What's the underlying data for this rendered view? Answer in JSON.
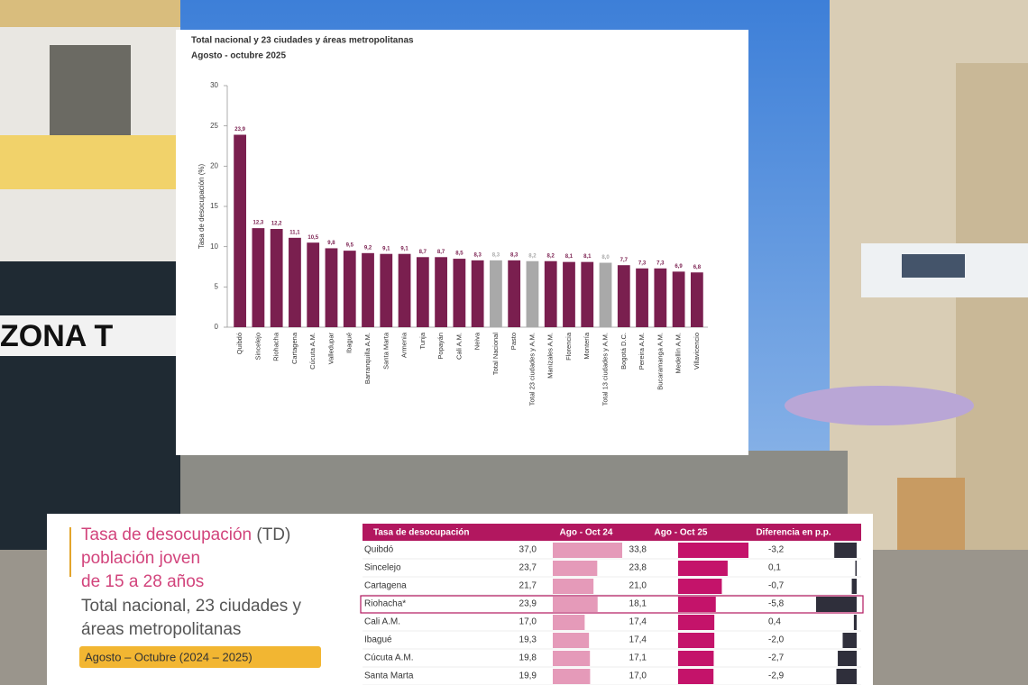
{
  "chart_data": {
    "type": "bar",
    "title": "Total nacional y 23 ciudades y áreas metropolitanas",
    "subtitle": "Agosto - octubre 2025",
    "y_label": "Tasa de desocupación (%)",
    "categories": [
      "Quibdó",
      "Sincelejo",
      "Riohacha",
      "Cartagena",
      "Cúcuta A.M.",
      "Valledupar",
      "Ibagué",
      "Barranquilla A.M.",
      "Santa Marta",
      "Armenia",
      "Tunja",
      "Popayán",
      "Cali A.M.",
      "Neiva",
      "Total Nacional",
      "Pasto",
      "Total 23 ciudades y A.M.",
      "Manizales A.M.",
      "Florencia",
      "Montería",
      "Total 13 ciudades y A.M.",
      "Bogotá D.C.",
      "Pereira A.M.",
      "Bucaramanga A.M.",
      "Medellín A.M.",
      "Villavicencio"
    ],
    "values": [
      23.9,
      12.3,
      12.2,
      11.1,
      10.5,
      9.8,
      9.5,
      9.2,
      9.1,
      9.1,
      8.7,
      8.7,
      8.5,
      8.3,
      8.3,
      8.3,
      8.2,
      8.2,
      8.1,
      8.1,
      8.0,
      7.7,
      7.3,
      7.3,
      6.9,
      6.8
    ],
    "value_labels": [
      "23,9",
      "12,3",
      "12,2",
      "11,1",
      "10,5",
      "9,8",
      "9,5",
      "9,2",
      "9,1",
      "9,1",
      "8,7",
      "8,7",
      "8,5",
      "8,3",
      "8,3",
      "8,3",
      "8,2",
      "8,2",
      "8,1",
      "8,1",
      "8,0",
      "7,7",
      "7,3",
      "7,3",
      "6,9",
      "6,8"
    ],
    "colors": [
      "#7a1f4f",
      "#7a1f4f",
      "#7a1f4f",
      "#7a1f4f",
      "#7a1f4f",
      "#7a1f4f",
      "#7a1f4f",
      "#7a1f4f",
      "#7a1f4f",
      "#7a1f4f",
      "#7a1f4f",
      "#7a1f4f",
      "#7a1f4f",
      "#7a1f4f",
      "#a9a9a9",
      "#7a1f4f",
      "#a9a9a9",
      "#7a1f4f",
      "#7a1f4f",
      "#7a1f4f",
      "#a9a9a9",
      "#7a1f4f",
      "#7a1f4f",
      "#7a1f4f",
      "#7a1f4f",
      "#7a1f4f"
    ],
    "ylim": [
      0,
      30
    ],
    "yticks": [
      0,
      5,
      10,
      15,
      20,
      25,
      30
    ],
    "grid": false
  },
  "table": {
    "heading": {
      "line1": "Tasa de desocupación",
      "line1_abbr": "(TD)",
      "line2": "población joven",
      "line3": "de 15 a 28 años",
      "line4": "Total nacional, 23 ciudades y",
      "line5": "áreas metropolitanas",
      "period": "Agosto – Octubre (2024 – 2025)"
    },
    "columns": [
      "Tasa de desocupación",
      "Ago - Oct 24",
      "Ago - Oct 25",
      "Diferencia en p.p."
    ],
    "rows": [
      {
        "city": "Quibdó",
        "oct24": {
          "value": 37.0,
          "label": "37,0"
        },
        "oct25": {
          "value": 33.8,
          "label": "33,8"
        },
        "diff": {
          "value": -3.2,
          "label": "-3,2"
        }
      },
      {
        "city": "Sincelejo",
        "oct24": {
          "value": 23.7,
          "label": "23,7"
        },
        "oct25": {
          "value": 23.8,
          "label": "23,8"
        },
        "diff": {
          "value": 0.1,
          "label": "0,1"
        }
      },
      {
        "city": "Cartagena",
        "oct24": {
          "value": 21.7,
          "label": "21,7"
        },
        "oct25": {
          "value": 21.0,
          "label": "21,0"
        },
        "diff": {
          "value": -0.7,
          "label": "-0,7"
        }
      },
      {
        "city": "Riohacha*",
        "oct24": {
          "value": 23.9,
          "label": "23,9"
        },
        "oct25": {
          "value": 18.1,
          "label": "18,1"
        },
        "diff": {
          "value": -5.8,
          "label": "-5,8"
        },
        "highlight": true
      },
      {
        "city": "Cali A.M.",
        "oct24": {
          "value": 17.0,
          "label": "17,0"
        },
        "oct25": {
          "value": 17.4,
          "label": "17,4"
        },
        "diff": {
          "value": 0.4,
          "label": "0,4"
        }
      },
      {
        "city": "Ibagué",
        "oct24": {
          "value": 19.3,
          "label": "19,3"
        },
        "oct25": {
          "value": 17.4,
          "label": "17,4"
        },
        "diff": {
          "value": -2.0,
          "label": "-2,0"
        }
      },
      {
        "city": "Cúcuta A.M.",
        "oct24": {
          "value": 19.8,
          "label": "19,8"
        },
        "oct25": {
          "value": 17.1,
          "label": "17,1"
        },
        "diff": {
          "value": -2.7,
          "label": "-2,7"
        }
      },
      {
        "city": "Santa Marta",
        "oct24": {
          "value": 19.9,
          "label": "19,9"
        },
        "oct25": {
          "value": 17.0,
          "label": "17,0"
        },
        "diff": {
          "value": -2.9,
          "label": "-2,9"
        }
      }
    ]
  }
}
